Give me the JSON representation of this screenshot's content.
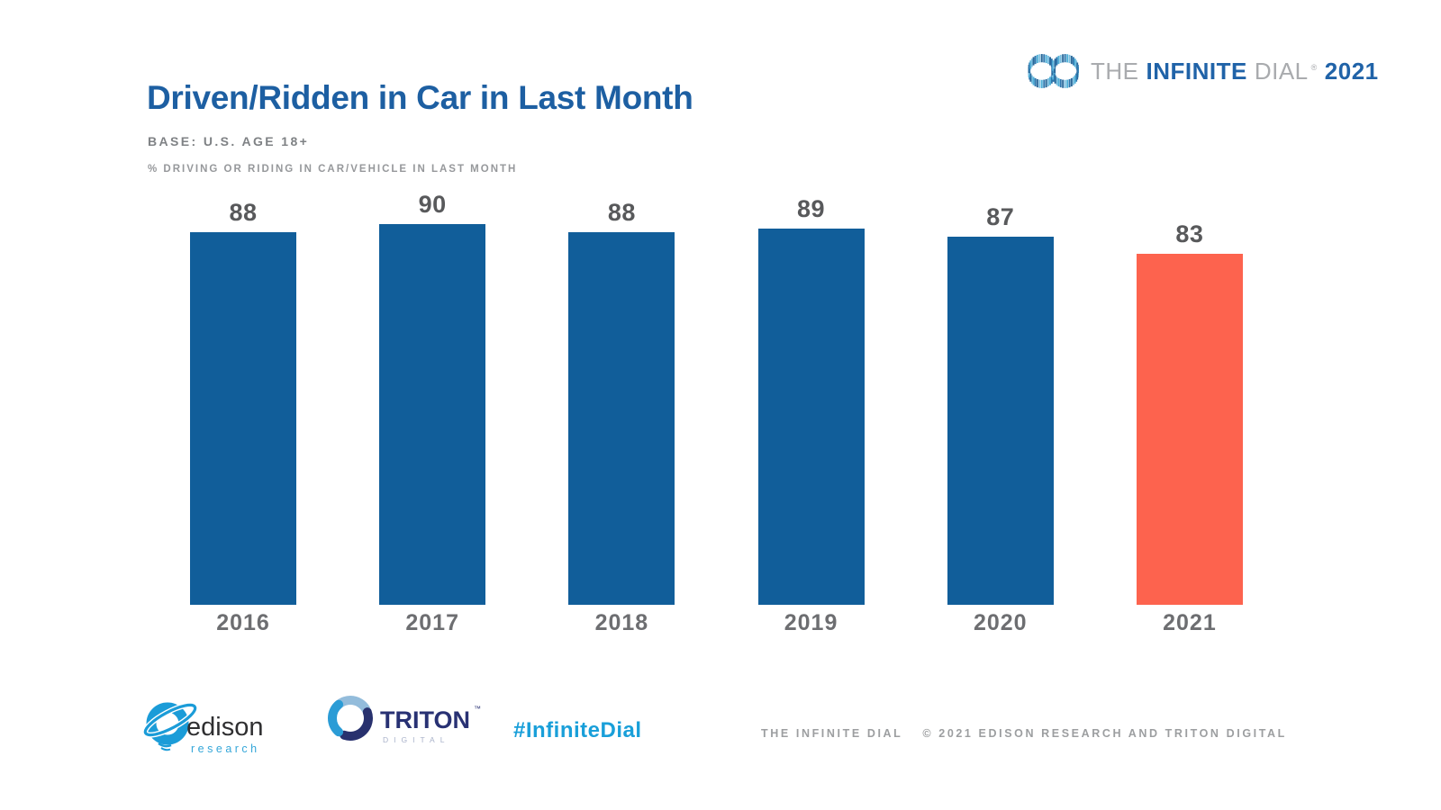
{
  "slide": {
    "title": "Driven/Ridden in Car in Last Month",
    "base_label": "BASE: U.S. AGE 18+",
    "metric_label": "% DRIVING OR RIDING IN CAR/VEHICLE IN LAST MONTH"
  },
  "brand": {
    "word_the": "THE",
    "word_infinite": "INFINITE",
    "word_dial": "DIAL",
    "registered_mark": "®",
    "year": "2021"
  },
  "chart_data": {
    "type": "bar",
    "title": "Driven/Ridden in Car in Last Month",
    "categories": [
      "2016",
      "2017",
      "2018",
      "2019",
      "2020",
      "2021"
    ],
    "values": [
      88,
      90,
      88,
      89,
      87,
      83
    ],
    "series": [
      {
        "name": "% driving or riding in car/vehicle in last month",
        "values": [
          88,
          90,
          88,
          89,
          87,
          83
        ]
      }
    ],
    "xlabel": "",
    "ylabel": "% driving or riding in car/vehicle in last month",
    "ylim": [
      0,
      100
    ],
    "grid": false,
    "legend": false,
    "value_labels_shown": true,
    "bar_colors": [
      "#115e9a",
      "#115e9a",
      "#115e9a",
      "#115e9a",
      "#115e9a",
      "#fd634e"
    ],
    "highlight_category": "2021"
  },
  "footer": {
    "edison_logo": {
      "name": "edison",
      "subtext": "research"
    },
    "triton_logo": {
      "name": "TRITON",
      "trademark": "™",
      "subtext": "DIGITAL"
    },
    "hashtag": "#InfiniteDial",
    "credit_title": "THE INFINITE DIAL",
    "credit_copyright": "© 2021 EDISON RESEARCH AND TRITON DIGITAL"
  },
  "colors": {
    "title_blue": "#1d5fa2",
    "bar_blue": "#115e9a",
    "bar_orange": "#fd634e",
    "value_label_gray": "#58595b",
    "axis_label_gray": "#6d6e71",
    "subtitle_gray": "#7f8285",
    "metric_gray": "#96989b",
    "footer_gray": "#9c9ea0",
    "hashtag_blue": "#199fd9",
    "brand_gray": "#a9abae",
    "brand_blue": "#2063a8",
    "edison_cyan": "#1b9cd8",
    "triton_navy": "#283173"
  }
}
